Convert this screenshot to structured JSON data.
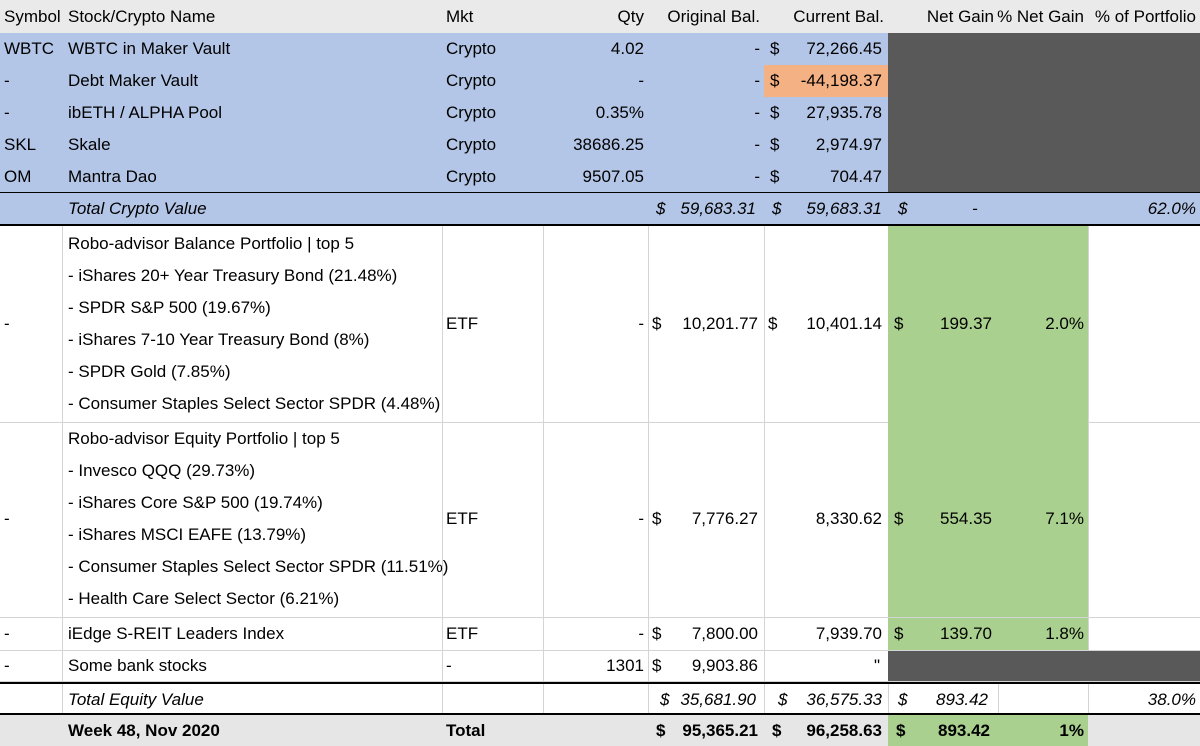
{
  "headers": {
    "symbol": "Symbol",
    "name": "Stock/Crypto Name",
    "mkt": "Mkt",
    "qty": "Qty",
    "orig": "Original Bal.",
    "curr": "Current Bal.",
    "gain": "Net Gain",
    "pct_gain": "% Net Gain",
    "pct_port": "% of Portfolio"
  },
  "currency": "$",
  "crypto_rows": [
    {
      "symbol": "WBTC",
      "name": "WBTC in Maker Vault",
      "mkt": "Crypto",
      "qty": "4.02",
      "orig": "-",
      "curr": "72,266.45"
    },
    {
      "symbol": "-",
      "name": "Debt Maker Vault",
      "mkt": "Crypto",
      "qty": "-",
      "orig": "-",
      "curr": "-44,198.37"
    },
    {
      "symbol": "-",
      "name": "ibETH / ALPHA Pool",
      "mkt": "Crypto",
      "qty": "0.35%",
      "orig": "-",
      "curr": "27,935.78"
    },
    {
      "symbol": "SKL",
      "name": "Skale",
      "mkt": "Crypto",
      "qty": "38686.25",
      "orig": "-",
      "curr": "2,974.97"
    },
    {
      "symbol": "OM",
      "name": "Mantra Dao",
      "mkt": "Crypto",
      "qty": "9507.05",
      "orig": "-",
      "curr": "704.47"
    }
  ],
  "crypto_total": {
    "label": "Total Crypto Value",
    "orig": "59,683.31",
    "curr": "59,683.31",
    "gain": "-",
    "pct_port": "62.0%"
  },
  "balance_portfolio": {
    "symbol": "-",
    "lines": [
      "Robo-advisor Balance Portfolio | top 5",
      " - iShares 20+ Year Treasury Bond (21.48%)",
      " - SPDR S&P 500 (19.67%)",
      " - iShares 7-10 Year Treasury Bond (8%)",
      " - SPDR Gold (7.85%)",
      " - Consumer Staples Select Sector SPDR (4.48%)"
    ],
    "mkt": "ETF",
    "qty": "-",
    "orig": "10,201.77",
    "curr": "10,401.14",
    "gain": "199.37",
    "pct_gain": "2.0%"
  },
  "equity_portfolio": {
    "symbol": "-",
    "lines": [
      "Robo-advisor Equity Portfolio | top 5",
      " - Invesco QQQ (29.73%)",
      " - iShares Core S&P 500 (19.74%)",
      " - iShares MSCI EAFE (13.79%)",
      " - Consumer Staples Select Sector SPDR (11.51%)",
      " - Health Care Select Sector (6.21%)"
    ],
    "mkt": "ETF",
    "qty": "-",
    "orig": "7,776.27",
    "curr": "8,330.62",
    "gain": "554.35",
    "pct_gain": "7.1%"
  },
  "sreit": {
    "symbol": "-",
    "name": "iEdge S-REIT Leaders Index",
    "mkt": "ETF",
    "qty": "-",
    "orig": "7,800.00",
    "curr": "7,939.70",
    "gain": "139.70",
    "pct_gain": "1.8%"
  },
  "bank": {
    "symbol": "-",
    "name": "Some bank stocks",
    "mkt": "-",
    "qty": "1301",
    "orig": "9,903.86",
    "curr": "\""
  },
  "equity_total": {
    "label": "Total Equity Value",
    "orig": "35,681.90",
    "curr": "36,575.33",
    "gain": "893.42",
    "pct_port": "38.0%"
  },
  "grand_total": {
    "label": "Week 48, Nov 2020",
    "mkt": "Total",
    "orig": "95,365.21",
    "curr": "96,258.63",
    "gain": "893.42",
    "pct_gain": "1%"
  }
}
